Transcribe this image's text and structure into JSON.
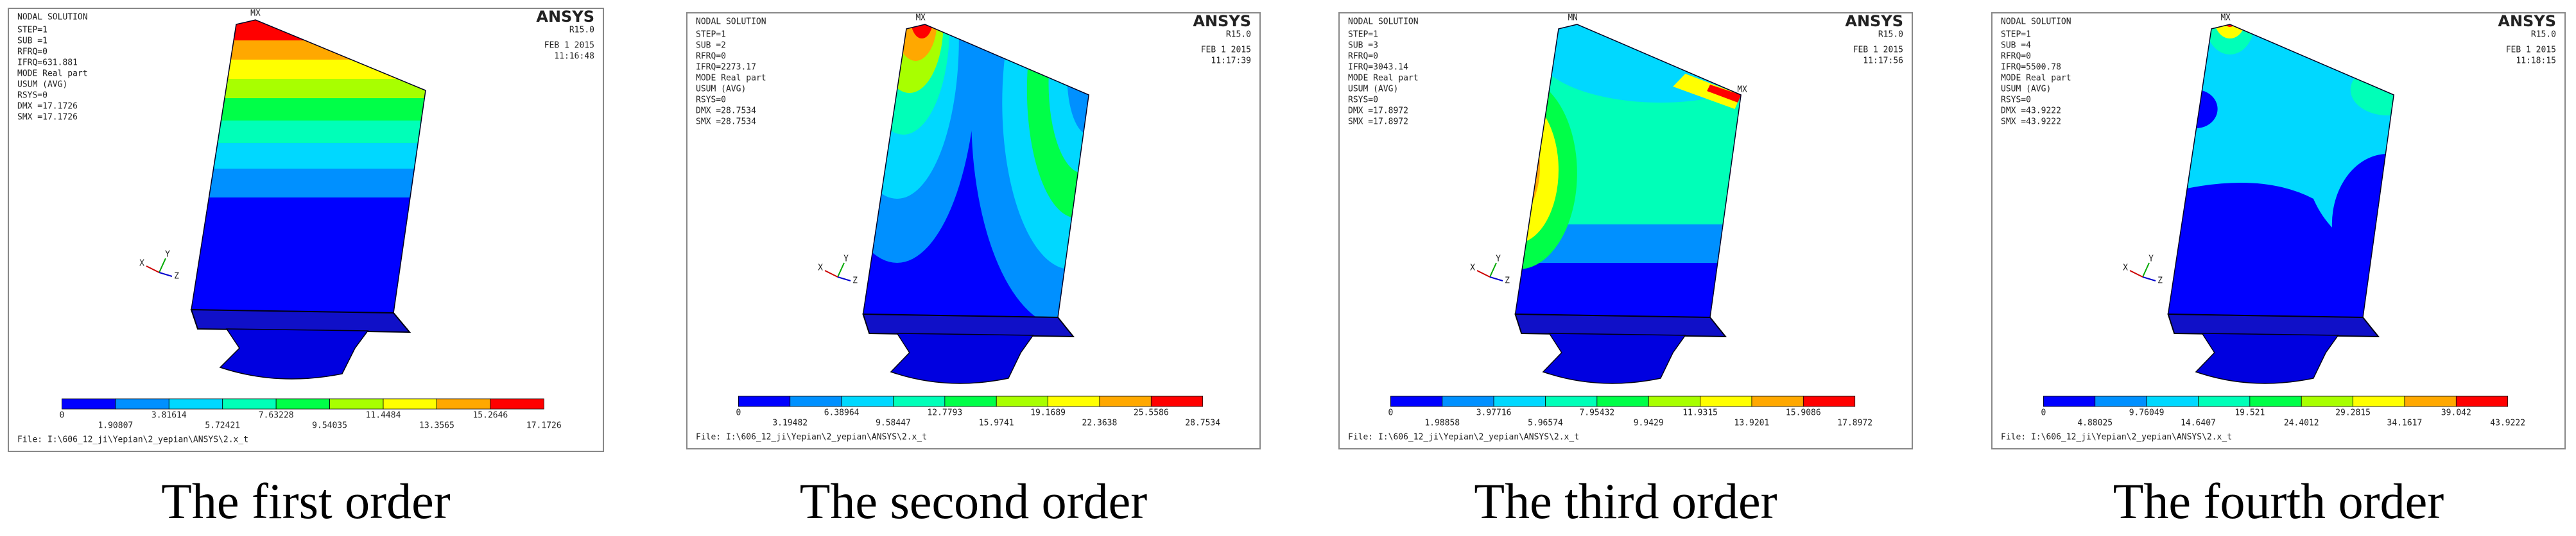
{
  "panels": [
    {
      "title": "NODAL SOLUTION",
      "brand": "ANSYS",
      "version": "R15.0",
      "date": "FEB  1 2015",
      "time": "11:16:48",
      "lines": [
        "STEP=1",
        "SUB =1",
        "RFRQ=0",
        "IFRQ=631.881",
        "MODE Real part",
        "USUM      (AVG)",
        "RSYS=0",
        "DMX =17.1726",
        "SMX =17.1726"
      ],
      "markers": [
        "MX"
      ],
      "axes": [
        "X",
        "Y",
        "Z"
      ],
      "legend": [
        "0",
        "1.90807",
        "3.81614",
        "5.72421",
        "7.63228",
        "9.54035",
        "11.4484",
        "13.3565",
        "15.2646",
        "17.1726"
      ],
      "file": "File: I:\\606_12_ji\\Yepian\\2_yepian\\ANSYS\\2.x_t",
      "caption": "The first order"
    },
    {
      "title": "NODAL SOLUTION",
      "brand": "ANSYS",
      "version": "R15.0",
      "date": "FEB  1 2015",
      "time": "11:17:39",
      "lines": [
        "STEP=1",
        "SUB =2",
        "RFRQ=0",
        "IFRQ=2273.17",
        "MODE Real part",
        "USUM      (AVG)",
        "RSYS=0",
        "DMX =28.7534",
        "SMX =28.7534"
      ],
      "markers": [
        "MX"
      ],
      "axes": [
        "X",
        "Y",
        "Z"
      ],
      "legend": [
        "0",
        "3.19482",
        "6.38964",
        "9.58447",
        "12.7793",
        "15.9741",
        "19.1689",
        "22.3638",
        "25.5586",
        "28.7534"
      ],
      "file": "File: I:\\606_12_ji\\Yepian\\2_yepian\\ANSYS\\2.x_t",
      "caption": "The second order"
    },
    {
      "title": "NODAL SOLUTION",
      "brand": "ANSYS",
      "version": "R15.0",
      "date": "FEB  1 2015",
      "time": "11:17:56",
      "lines": [
        "STEP=1",
        "SUB =3",
        "RFRQ=0",
        "IFRQ=3043.14",
        "MODE Real part",
        "USUM      (AVG)",
        "RSYS=0",
        "DMX =17.8972",
        "SMX =17.8972"
      ],
      "markers": [
        "MN",
        "MX"
      ],
      "axes": [
        "X",
        "Y",
        "Z"
      ],
      "legend": [
        "0",
        "1.98858",
        "3.97716",
        "5.96574",
        "7.95432",
        "9.9429",
        "11.9315",
        "13.9201",
        "15.9086",
        "17.8972"
      ],
      "file": "File: I:\\606_12_ji\\Yepian\\2_yepian\\ANSYS\\2.x_t",
      "caption": "The third order"
    },
    {
      "title": "NODAL SOLUTION",
      "brand": "ANSYS",
      "version": "R15.0",
      "date": "FEB  1 2015",
      "time": "11:18:15",
      "lines": [
        "STEP=1",
        "SUB =4",
        "RFRQ=0",
        "IFRQ=5500.78",
        "MODE Real part",
        "USUM      (AVG)",
        "RSYS=0",
        "DMX =43.9222",
        "SMX =43.9222"
      ],
      "markers": [
        "MX"
      ],
      "axes": [
        "X",
        "Y",
        "Z"
      ],
      "legend": [
        "0",
        "4.88025",
        "9.76049",
        "14.6407",
        "19.521",
        "24.4012",
        "29.2815",
        "34.1617",
        "39.042",
        "43.9222"
      ],
      "file": "File: I:\\606_12_ji\\Yepian\\2_yepian\\ANSYS\\2.x_t",
      "caption": "The fourth order"
    }
  ]
}
